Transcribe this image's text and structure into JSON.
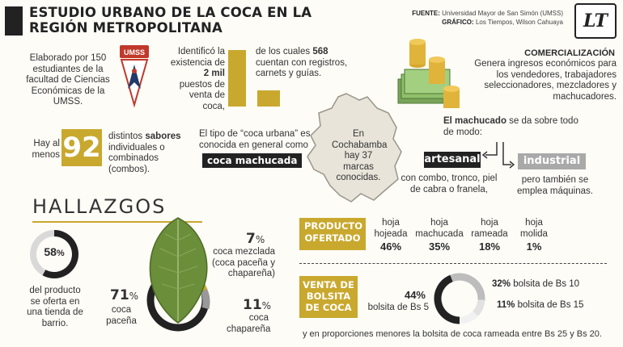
{
  "header": {
    "title": "ESTUDIO URBANO DE LA COCA EN LA REGIÓN METROPOLITANA",
    "source_label": "FUENTE:",
    "source_value": "Universidad Mayor de San Simón (UMSS)",
    "graphic_label": "GRÁFICO:",
    "graphic_value": "Los Tiempos, Wilson Cahuaya",
    "logo_text": "LT"
  },
  "study": {
    "text": "Elaborado por 150 estudiantes de la facultad de Ciencias Económicas de la UMSS.",
    "logo_text": "UMSS"
  },
  "stalls": {
    "left_text_1": "Identificó la existencia de",
    "left_highlight": "2 mil",
    "left_text_2": "puestos de venta de coca,",
    "right_text_1": "de los cuales",
    "right_highlight": "568",
    "right_text_2": "cuentan con registros, carnets y guías.",
    "bar_values": [
      2000,
      568
    ]
  },
  "commerce": {
    "heading": "COMERCIALIZACIÓN",
    "text": "Genera ingresos económicos para los vendedores, trabajadores seleccionadores, mezcladores y machucadores."
  },
  "flavors": {
    "prefix": "Hay al menos",
    "number": "92",
    "text_1": "distintos",
    "highlight": "sabores",
    "text_2": "individuales o combinados (combos)."
  },
  "urban_coca": {
    "text": "El tipo de “coca urbana” es conocida en general como",
    "badge": "coca machucada"
  },
  "map": {
    "text": "En Cochabamba hay 37 marcas conocidas."
  },
  "machucado": {
    "heading": "El machucado",
    "text": "se da sobre todo de modo:",
    "artisanal_label": "artesanal",
    "artisanal_text": "con combo, tronco, piel de cabra o franela,",
    "industrial_label": "industrial",
    "industrial_text": "pero también se emplea máquinas."
  },
  "findings": {
    "heading": "HALLAZGOS",
    "store_pct": "58",
    "store_pct_value": 58,
    "store_text": "del producto se oferta en una tienda de barrio.",
    "pacena_pct": "71",
    "pacena_label": "coca paceña",
    "mezclada_pct": "7",
    "mezclada_label": "coca mezclada (coca paceña y chapareña)",
    "chaparena_pct": "11",
    "chaparena_label": "coca chapareña",
    "pct_sign": "%"
  },
  "offered": {
    "badge": "PRODUCTO OFERTADO",
    "items": [
      {
        "label": "hoja hojeada",
        "pct": "46%"
      },
      {
        "label": "hoja machucada",
        "pct": "35%"
      },
      {
        "label": "hoja rameada",
        "pct": "18%"
      },
      {
        "label": "hoja molida",
        "pct": "1%"
      }
    ]
  },
  "bag_sales": {
    "badge": "VENTA DE BOLSITA DE COCA",
    "bs5_pct": "44%",
    "bs5_label": "bolsita de Bs 5",
    "bs10_pct": "32%",
    "bs10_label": "bolsita de Bs 10",
    "bs15_pct": "11%",
    "bs15_label": "bolsita de Bs 15",
    "footnote": "y en proporciones menores la bolsita de coca rameada entre Bs 25 y Bs 20."
  },
  "colors": {
    "gold": "#c9a82e",
    "dark": "#222222",
    "gray": "#a9a9a9",
    "background": "#fdfcf7"
  }
}
